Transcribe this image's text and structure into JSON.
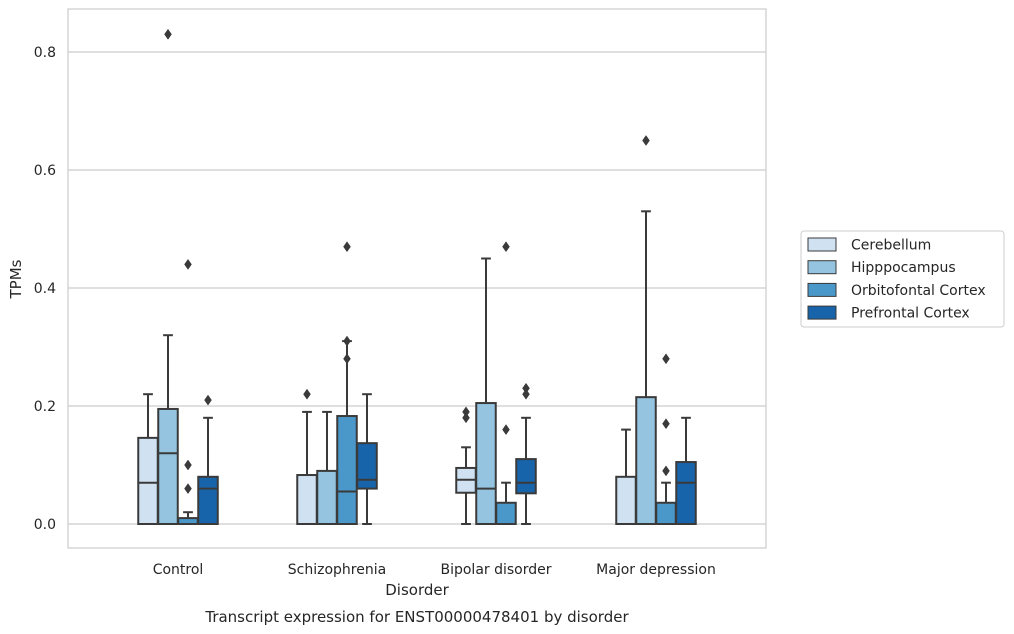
{
  "chart_data": {
    "type": "box",
    "title": "",
    "caption": "Transcript expression for ENST00000478401 by disorder",
    "xlabel": "Disorder",
    "ylabel": "TPMs",
    "categories": [
      "Control",
      "Schizophrenia",
      "Bipolar disorder",
      "Major depression"
    ],
    "ylim": [
      -0.04,
      0.875
    ],
    "yticks": [
      0.0,
      0.2,
      0.4,
      0.6,
      0.8
    ],
    "ytick_labels": [
      "0.0",
      "0.2",
      "0.4",
      "0.6",
      "0.8"
    ],
    "grid": "horizontal",
    "legend_position": "right",
    "series": [
      {
        "name": "Cerebellum",
        "color": "#d0e1f2",
        "boxes": [
          {
            "whislo": 0.0,
            "q1": 0.0,
            "med": 0.07,
            "q3": 0.146,
            "whishi": 0.22,
            "fliers": []
          },
          {
            "whislo": 0.0,
            "q1": 0.0,
            "med": 0.0,
            "q3": 0.083,
            "whishi": 0.19,
            "fliers": [
              0.22
            ]
          },
          {
            "whislo": 0.0,
            "q1": 0.053,
            "med": 0.075,
            "q3": 0.095,
            "whishi": 0.13,
            "fliers": [
              0.18,
              0.19
            ]
          },
          {
            "whislo": 0.0,
            "q1": 0.0,
            "med": 0.0,
            "q3": 0.08,
            "whishi": 0.16,
            "fliers": []
          }
        ]
      },
      {
        "name": "Hipppocampus",
        "color": "#94c4df",
        "boxes": [
          {
            "whislo": 0.0,
            "q1": 0.0,
            "med": 0.12,
            "q3": 0.195,
            "whishi": 0.32,
            "fliers": [
              0.83
            ]
          },
          {
            "whislo": 0.0,
            "q1": 0.0,
            "med": 0.0,
            "q3": 0.09,
            "whishi": 0.19,
            "fliers": []
          },
          {
            "whislo": 0.0,
            "q1": 0.0,
            "med": 0.06,
            "q3": 0.205,
            "whishi": 0.45,
            "fliers": []
          },
          {
            "whislo": 0.0,
            "q1": 0.0,
            "med": 0.0,
            "q3": 0.215,
            "whishi": 0.53,
            "fliers": [
              0.65
            ]
          }
        ]
      },
      {
        "name": "Orbitofontal Cortex",
        "color": "#4a98c9",
        "boxes": [
          {
            "whislo": 0.0,
            "q1": 0.0,
            "med": 0.0,
            "q3": 0.01,
            "whishi": 0.02,
            "fliers": [
              0.06,
              0.1,
              0.44
            ]
          },
          {
            "whislo": 0.0,
            "q1": 0.0,
            "med": 0.055,
            "q3": 0.183,
            "whishi": 0.31,
            "fliers": [
              0.28,
              0.31,
              0.47
            ]
          },
          {
            "whislo": 0.0,
            "q1": 0.0,
            "med": 0.0,
            "q3": 0.036,
            "whishi": 0.07,
            "fliers": [
              0.16,
              0.47
            ]
          },
          {
            "whislo": 0.0,
            "q1": 0.0,
            "med": 0.0,
            "q3": 0.036,
            "whishi": 0.07,
            "fliers": [
              0.09,
              0.17,
              0.28
            ]
          }
        ]
      },
      {
        "name": "Prefrontal Cortex",
        "color": "#1764ab",
        "boxes": [
          {
            "whislo": 0.0,
            "q1": 0.0,
            "med": 0.06,
            "q3": 0.08,
            "whishi": 0.18,
            "fliers": [
              0.21
            ]
          },
          {
            "whislo": 0.0,
            "q1": 0.06,
            "med": 0.075,
            "q3": 0.137,
            "whishi": 0.22,
            "fliers": []
          },
          {
            "whislo": 0.0,
            "q1": 0.052,
            "med": 0.07,
            "q3": 0.11,
            "whishi": 0.18,
            "fliers": [
              0.22,
              0.23
            ]
          },
          {
            "whislo": 0.0,
            "q1": 0.0,
            "med": 0.07,
            "q3": 0.105,
            "whishi": 0.18,
            "fliers": []
          }
        ]
      }
    ]
  }
}
